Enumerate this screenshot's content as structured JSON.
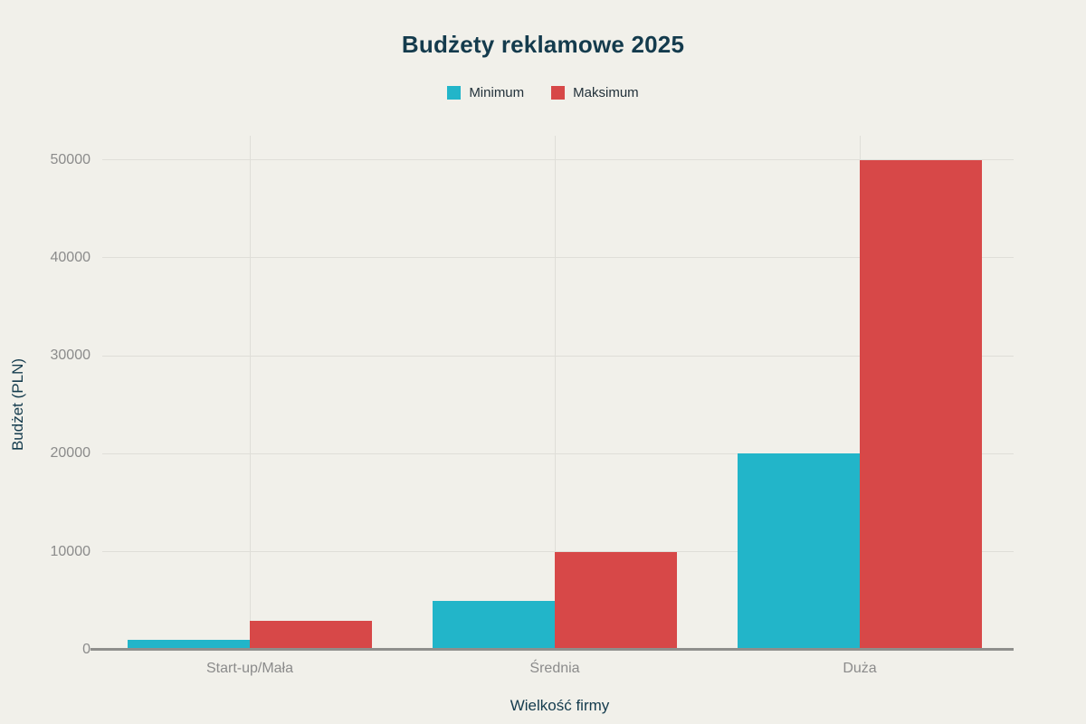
{
  "chart_data": {
    "type": "bar",
    "title": "Budżety reklamowe 2025",
    "xlabel": "Wielkość firmy",
    "ylabel": "Budżet (PLN)",
    "categories": [
      "Start-up/Mała",
      "Średnia",
      "Duża"
    ],
    "series": [
      {
        "name": "Minimum",
        "color": "#22b5c9",
        "values": [
          1000,
          5000,
          20000
        ]
      },
      {
        "name": "Maksimum",
        "color": "#d74848",
        "values": [
          3000,
          10000,
          50000
        ]
      }
    ],
    "ylim": [
      0,
      50000
    ],
    "yticks": [
      0,
      10000,
      20000,
      30000,
      40000,
      50000
    ],
    "grid": true,
    "legend_position": "top-center"
  },
  "colors": {
    "background": "#f1f0ea",
    "gridline": "#dfded8",
    "axis_line": "#8f8f8c",
    "tick_label": "#8b8b8b",
    "title": "#143b4d",
    "axis_title": "#143b4d",
    "legend_text": "#22313a",
    "series_minimum": "#22b5c9",
    "series_maksimum": "#d74848"
  }
}
